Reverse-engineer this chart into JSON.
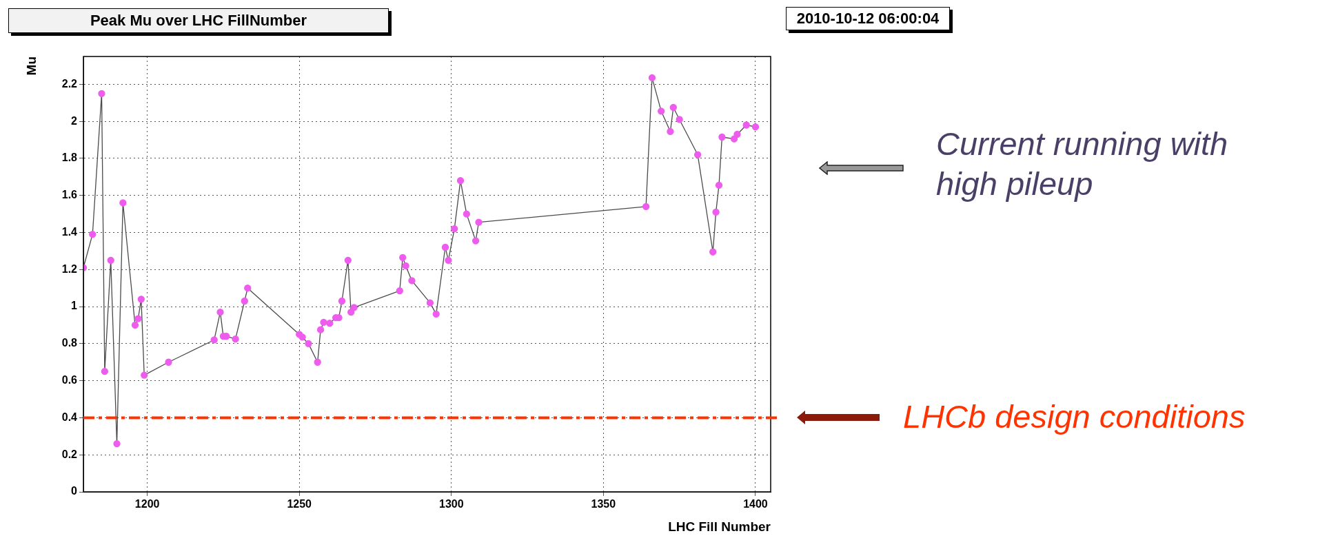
{
  "chart_data": {
    "type": "line",
    "title": "Peak Mu over LHC FillNumber",
    "subtitle": "2010-10-12 06:00:04",
    "xlabel": "LHC Fill Number",
    "ylabel": "Mu",
    "xlim": [
      1179,
      1405
    ],
    "xticks": [
      1200,
      1250,
      1300,
      1350,
      1400
    ],
    "ylim": [
      0,
      2.35
    ],
    "yticks": [
      0,
      0.2,
      0.4,
      0.6,
      0.8,
      1,
      1.2,
      1.4,
      1.6,
      1.8,
      2,
      2.2
    ],
    "grid": true,
    "legend": false,
    "marker": "circle",
    "line_style": "solid",
    "series": [
      {
        "color": "#ee5cee",
        "x": [
          1179,
          1182,
          1185,
          1186,
          1188,
          1190,
          1192,
          1196,
          1197,
          1198,
          1199,
          1207,
          1222,
          1224,
          1225,
          1226,
          1229,
          1232,
          1233,
          1250,
          1251,
          1253,
          1256,
          1257,
          1258,
          1260,
          1262,
          1263,
          1264,
          1266,
          1267,
          1268,
          1283,
          1284,
          1285,
          1287,
          1293,
          1295,
          1298,
          1299,
          1301,
          1303,
          1305,
          1308,
          1309,
          1364,
          1366,
          1369,
          1372,
          1373,
          1375,
          1381,
          1386,
          1387,
          1388,
          1389,
          1393,
          1394,
          1397,
          1400
        ],
        "values": [
          1.21,
          1.39,
          2.15,
          0.65,
          1.25,
          0.26,
          1.56,
          0.9,
          0.935,
          1.04,
          0.63,
          0.7,
          0.82,
          0.97,
          0.84,
          0.84,
          0.825,
          1.03,
          1.1,
          0.85,
          0.835,
          0.8,
          0.7,
          0.875,
          0.915,
          0.91,
          0.94,
          0.94,
          1.03,
          1.25,
          0.97,
          0.995,
          1.085,
          1.265,
          1.22,
          1.14,
          1.02,
          0.96,
          1.32,
          1.25,
          1.42,
          1.68,
          1.5,
          1.355,
          1.455,
          1.54,
          2.235,
          2.055,
          1.945,
          2.075,
          2.01,
          1.82,
          1.295,
          1.51,
          1.655,
          1.915,
          1.905,
          1.93,
          1.98,
          1.97
        ]
      }
    ],
    "ref_lines": [
      {
        "axis": "y",
        "value": 0.4,
        "label": "LHCb design conditions",
        "color": "#ff3300",
        "line_style": "dashed"
      }
    ],
    "annotations": [
      "Current running with high pileup"
    ]
  }
}
